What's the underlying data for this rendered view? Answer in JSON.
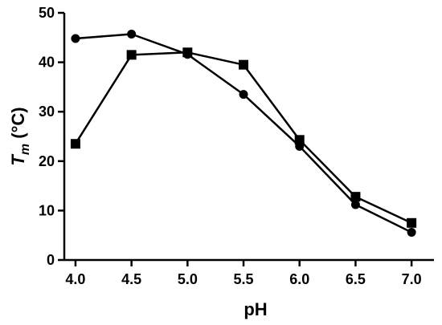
{
  "chart_data": {
    "type": "line",
    "x": [
      4.0,
      4.5,
      5.0,
      5.5,
      6.0,
      6.5,
      7.0
    ],
    "x_tick_labels": [
      "4.0",
      "4.5",
      "5.0",
      "5.5",
      "6.0",
      "6.5",
      "7.0"
    ],
    "y_ticks": [
      0,
      10,
      20,
      30,
      40,
      50
    ],
    "y_tick_labels": [
      "0",
      "10",
      "20",
      "30",
      "40",
      "50"
    ],
    "xlim": [
      3.9,
      7.2
    ],
    "ylim": [
      0,
      50
    ],
    "xlabel": "pH",
    "ylabel": {
      "main": "T",
      "subscript": "m",
      "unit": " (°C)"
    },
    "grid": false,
    "line_color": "#000000",
    "series": [
      {
        "marker": "circle",
        "values": [
          44.8,
          45.7,
          41.6,
          33.5,
          23.0,
          11.2,
          5.6
        ]
      },
      {
        "marker": "square",
        "values": [
          23.5,
          41.5,
          42.0,
          39.5,
          24.3,
          12.8,
          7.5
        ]
      }
    ]
  }
}
